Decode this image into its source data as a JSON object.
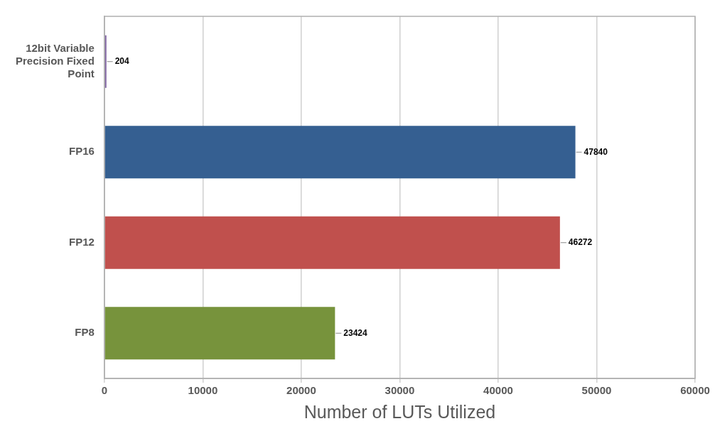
{
  "chart_data": {
    "type": "bar",
    "orientation": "horizontal",
    "xlabel": "Number of LUTs Utilized",
    "categories": [
      "12bit Variable Precision Fixed Point",
      "FP16",
      "FP12",
      "FP8"
    ],
    "values": [
      204,
      47840,
      46272,
      23424
    ],
    "colors": [
      "#7d60a0",
      "#355f91",
      "#c0504d",
      "#77933c"
    ],
    "xlim": [
      0,
      60000
    ],
    "xticks": [
      0,
      10000,
      20000,
      30000,
      40000,
      50000,
      60000
    ],
    "grid": "x",
    "legend": false,
    "data_labels": true
  }
}
